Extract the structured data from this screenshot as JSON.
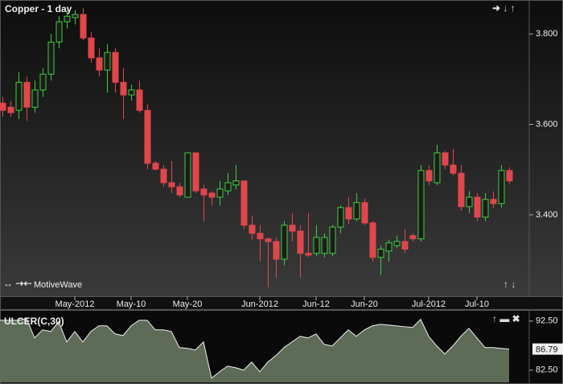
{
  "chart_data": [
    {
      "type": "candlestick",
      "title": "Copper - 1 day",
      "brand": "MotiveWave",
      "categories": [
        null,
        null,
        null,
        null,
        null,
        null,
        null,
        null,
        null,
        "May-2012",
        null,
        null,
        null,
        null,
        null,
        null,
        "May-10",
        null,
        null,
        null,
        null,
        null,
        null,
        "May-20",
        null,
        null,
        null,
        null,
        null,
        null,
        null,
        null,
        "Jun-2012",
        null,
        null,
        null,
        null,
        null,
        null,
        "Jun-12",
        null,
        null,
        null,
        null,
        null,
        "Jun-20",
        null,
        null,
        null,
        null,
        null,
        null,
        null,
        "Jul-2012",
        null,
        null,
        null,
        null,
        null,
        "Jul-10",
        null,
        null,
        null,
        null
      ],
      "open": [
        3.647,
        3.638,
        3.631,
        3.693,
        3.638,
        3.676,
        3.711,
        3.782,
        3.827,
        3.836,
        3.843,
        3.791,
        3.747,
        3.72,
        3.759,
        3.693,
        3.665,
        3.676,
        3.631,
        3.514,
        3.501,
        3.471,
        3.462,
        3.439,
        3.537,
        3.457,
        3.448,
        3.439,
        3.453,
        3.466,
        3.475,
        3.377,
        3.359,
        3.347,
        3.341,
        3.302,
        3.377,
        3.364,
        3.315,
        3.315,
        3.315,
        3.315,
        3.373,
        3.416,
        3.391,
        3.427,
        3.382,
        3.306,
        3.32,
        3.332,
        3.341,
        3.354,
        3.347,
        3.498,
        3.471,
        3.537,
        3.51,
        3.492,
        3.418,
        3.439,
        3.395,
        3.434,
        3.425,
        3.498
      ],
      "high": [
        3.661,
        3.652,
        3.715,
        3.706,
        3.697,
        3.724,
        3.8,
        3.839,
        3.853,
        3.853,
        3.857,
        3.804,
        3.768,
        3.777,
        3.768,
        3.724,
        3.688,
        3.697,
        3.644,
        3.519,
        3.51,
        3.519,
        3.471,
        3.537,
        3.537,
        3.466,
        3.452,
        3.475,
        3.492,
        3.51,
        3.475,
        3.398,
        3.377,
        3.35,
        3.35,
        3.386,
        3.404,
        3.377,
        3.404,
        3.377,
        3.359,
        3.377,
        3.421,
        3.439,
        3.448,
        3.436,
        3.386,
        3.332,
        3.345,
        3.354,
        3.368,
        3.359,
        3.51,
        3.51,
        3.555,
        3.541,
        3.546,
        3.51,
        3.452,
        3.448,
        3.448,
        3.452,
        3.51,
        3.505
      ],
      "low": [
        3.617,
        3.617,
        3.612,
        3.608,
        3.626,
        3.661,
        3.697,
        3.768,
        3.812,
        3.821,
        3.786,
        3.736,
        3.706,
        3.67,
        3.67,
        3.612,
        3.652,
        3.626,
        3.501,
        3.498,
        3.462,
        3.448,
        3.439,
        3.439,
        3.448,
        3.386,
        3.421,
        3.421,
        3.444,
        3.457,
        3.368,
        3.345,
        3.297,
        3.24,
        3.261,
        3.288,
        3.341,
        3.261,
        3.306,
        3.309,
        3.306,
        3.309,
        3.359,
        3.38,
        3.386,
        3.377,
        3.297,
        3.267,
        3.297,
        3.327,
        3.315,
        3.341,
        3.341,
        3.466,
        3.466,
        3.501,
        3.487,
        3.409,
        3.404,
        3.386,
        3.386,
        3.416,
        3.416,
        3.469
      ],
      "close": [
        3.631,
        3.626,
        3.693,
        3.638,
        3.676,
        3.711,
        3.782,
        3.827,
        3.839,
        3.843,
        3.791,
        3.747,
        3.72,
        3.759,
        3.693,
        3.665,
        3.676,
        3.631,
        3.514,
        3.501,
        3.471,
        3.462,
        3.444,
        3.537,
        3.453,
        3.444,
        3.439,
        3.457,
        3.471,
        3.475,
        3.377,
        3.359,
        3.347,
        3.341,
        3.302,
        3.377,
        3.364,
        3.315,
        3.311,
        3.35,
        3.35,
        3.373,
        3.416,
        3.391,
        3.427,
        3.382,
        3.306,
        3.324,
        3.338,
        3.341,
        3.324,
        3.347,
        3.498,
        3.475,
        3.537,
        3.51,
        3.492,
        3.418,
        3.439,
        3.395,
        3.434,
        3.425,
        3.498,
        3.475
      ],
      "up_color": "#3ccf3c",
      "down_color": "#e0474c",
      "ylim": [
        3.22,
        3.875
      ],
      "yticks": [
        {
          "value": 3.8,
          "label": "3.800"
        },
        {
          "value": 3.6,
          "label": "3.600"
        },
        {
          "value": 3.4,
          "label": "3.400"
        }
      ]
    },
    {
      "type": "area",
      "title": "ULCER(C,30)",
      "values": [
        92.66,
        92.66,
        92.66,
        92.99,
        89.06,
        90.7,
        90.37,
        92.34,
        88.24,
        90.37,
        88.24,
        90.37,
        91.52,
        91.52,
        89.88,
        89.55,
        91.52,
        92.66,
        92.66,
        90.7,
        90.7,
        90.37,
        87.09,
        86.93,
        86.6,
        88.24,
        80.86,
        82.17,
        83.32,
        82.99,
        82.5,
        84.14,
        82.17,
        84.14,
        85.45,
        87.09,
        88.24,
        89.39,
        89.06,
        89.88,
        87.75,
        87.42,
        89.06,
        90.7,
        89.39,
        90.7,
        91.52,
        91.84,
        91.68,
        91.52,
        91.35,
        91.19,
        92.83,
        89.39,
        87.42,
        85.78,
        87.42,
        89.39,
        91.02,
        89.06,
        87.09,
        87.09,
        86.93,
        86.79
      ],
      "color": "#5d6b57",
      "ylim": [
        80,
        94.6
      ],
      "yticks": [
        {
          "value": 92.5,
          "label": "92.50"
        },
        {
          "value": 82.5,
          "label": "82.50"
        }
      ]
    }
  ]
}
